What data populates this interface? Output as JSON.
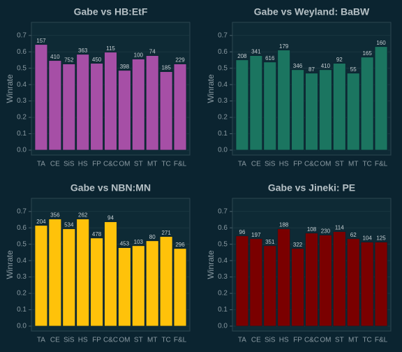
{
  "chart_data": [
    {
      "type": "bar",
      "title": "Gabe vs HB:EtF",
      "ylabel": "Winrate",
      "color": "#a64fa6",
      "categories": [
        "TA",
        "CE",
        "SiS",
        "HS",
        "FP",
        "C&C",
        "OM",
        "ST",
        "MT",
        "TC",
        "F&L"
      ],
      "values": [
        0.645,
        0.547,
        0.526,
        0.585,
        0.53,
        0.598,
        0.487,
        0.556,
        0.577,
        0.479,
        0.526
      ],
      "games": [
        157,
        410,
        752,
        363,
        450,
        115,
        398,
        100,
        74,
        185,
        229
      ],
      "ylim": [
        -0.03,
        0.78
      ],
      "yticks": [
        {
          "value": 0,
          "label": "0.0"
        },
        0.1,
        0.2,
        0.3,
        0.4,
        0.5,
        0.6,
        0.7
      ],
      "grid": true
    },
    {
      "type": "bar",
      "title": "Gabe vs Weyland: BaBW",
      "ylabel": "Winrate",
      "color": "#1b7560",
      "categories": [
        "TA",
        "CE",
        "SiS",
        "HS",
        "FP",
        "C&C",
        "OM",
        "ST",
        "MT",
        "TC",
        "F&L"
      ],
      "values": [
        0.551,
        0.577,
        0.538,
        0.611,
        0.491,
        0.47,
        0.491,
        0.53,
        0.47,
        0.568,
        0.632
      ],
      "games": [
        208,
        341,
        616,
        179,
        346,
        87,
        410,
        92,
        55,
        165,
        160
      ],
      "ylim": [
        -0.03,
        0.78
      ],
      "yticks": [
        {
          "value": 0,
          "label": "0.0"
        },
        0.1,
        0.2,
        0.3,
        0.4,
        0.5,
        0.6,
        0.7
      ],
      "grid": true
    },
    {
      "type": "bar",
      "title": "Gabe vs NBN:MN",
      "ylabel": "Winrate",
      "color": "#ffc20a",
      "categories": [
        "TA",
        "CE",
        "SiS",
        "HS",
        "FP",
        "C&C",
        "OM",
        "ST",
        "MT",
        "TC",
        "F&L"
      ],
      "values": [
        0.615,
        0.654,
        0.594,
        0.654,
        0.538,
        0.637,
        0.479,
        0.491,
        0.521,
        0.547,
        0.474
      ],
      "games": [
        204,
        356,
        534,
        262,
        478,
        94,
        453,
        103,
        80,
        271,
        296
      ],
      "ylim": [
        -0.03,
        0.78
      ],
      "yticks": [
        {
          "value": 0,
          "label": "0.0"
        },
        0.1,
        0.2,
        0.3,
        0.4,
        0.5,
        0.6,
        0.7
      ],
      "grid": true
    },
    {
      "type": "bar",
      "title": "Gabe vs Jineki: PE",
      "ylabel": "Winrate",
      "color": "#7a0000",
      "categories": [
        "TA",
        "CE",
        "SiS",
        "HS",
        "FP",
        "C&C",
        "OM",
        "ST",
        "MT",
        "TC",
        "F&L"
      ],
      "values": [
        0.551,
        0.534,
        0.491,
        0.594,
        0.474,
        0.568,
        0.556,
        0.577,
        0.534,
        0.513,
        0.513
      ],
      "games": [
        96,
        197,
        351,
        188,
        322,
        108,
        230,
        114,
        62,
        104,
        125
      ],
      "ylim": [
        -0.03,
        0.78
      ],
      "yticks": [
        {
          "value": 0,
          "label": "0.0"
        },
        0.1,
        0.2,
        0.3,
        0.4,
        0.5,
        0.6,
        0.7
      ],
      "grid": true
    }
  ]
}
